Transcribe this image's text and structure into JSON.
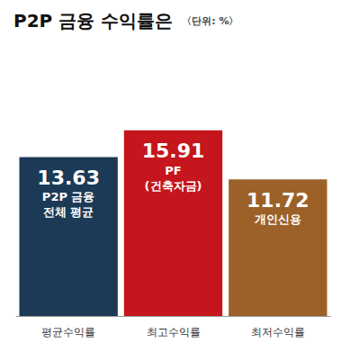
{
  "chart_data": {
    "type": "bar",
    "title": "P2P 금융 수익률은",
    "subtitle": "〈단위: %〉",
    "categories": [
      "평균수익률",
      "최고수익률",
      "최저수익률"
    ],
    "values": [
      13.63,
      15.91,
      11.72
    ],
    "colors": [
      "#1c3a56",
      "#c4161c",
      "#9c6128"
    ],
    "annotations": [
      "P2P 금융\n전체 평균",
      "PF\n(건축자금)",
      "개인신용"
    ],
    "ylim": [
      0,
      24
    ],
    "grid": false,
    "data_labels": true,
    "tick_labels": "x"
  }
}
